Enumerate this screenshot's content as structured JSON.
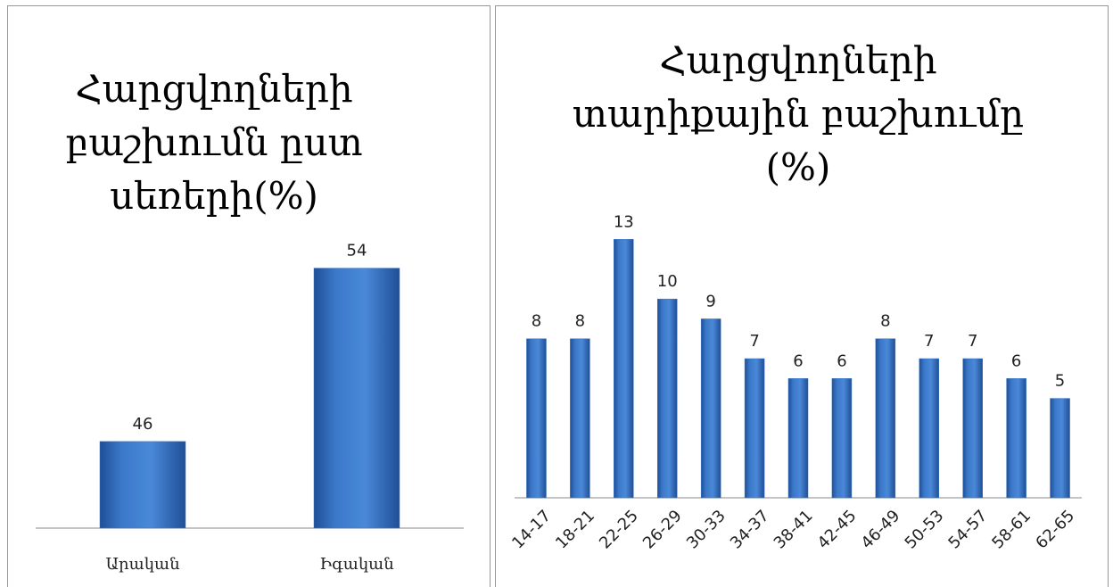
{
  "chart_data": [
    {
      "type": "bar",
      "title": "Հարցվողների բաշխումն ըստ սեռերի(%)",
      "categories": [
        "Արական",
        "Իգական"
      ],
      "values": [
        46,
        54
      ],
      "color": "#3b78c9",
      "ylim": [
        42,
        56
      ]
    },
    {
      "type": "bar",
      "title": "Հարցվողների տարիքային բաշխումը (%)",
      "categories": [
        "14-17",
        "18-21",
        "22-25",
        "26-29",
        "30-33",
        "34-37",
        "38-41",
        "42-45",
        "46-49",
        "50-53",
        "54-57",
        "58-61",
        "62-65"
      ],
      "values": [
        8,
        8,
        13,
        10,
        9,
        7,
        6,
        6,
        8,
        7,
        7,
        6,
        5
      ],
      "color": "#3b78c9",
      "ylim": [
        0,
        14
      ]
    }
  ]
}
